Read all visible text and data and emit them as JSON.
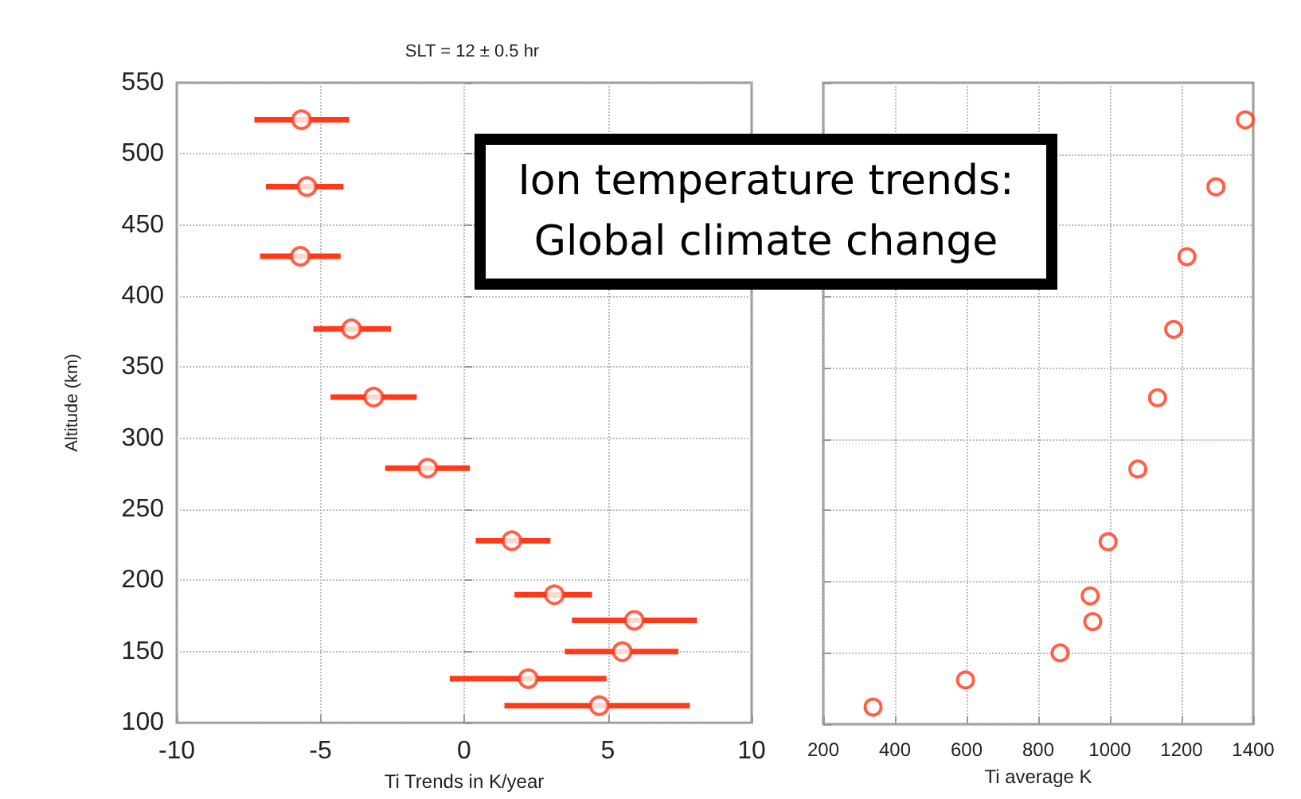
{
  "chart_data": [
    {
      "type": "scatter",
      "title": "SLT = 12 ± 0.5 hr",
      "xlabel": "Ti Trends in K/year",
      "ylabel": "Altitude (km)",
      "x": [
        -5.66,
        -5.47,
        -5.7,
        -3.92,
        -3.15,
        -1.27,
        1.66,
        3.14,
        5.92,
        5.5,
        2.23,
        4.7
      ],
      "values": [
        524,
        477,
        428,
        377,
        329,
        279,
        228,
        190,
        172,
        150,
        131,
        112
      ],
      "xerrors": [
        [
          -7.3,
          -4.0
        ],
        [
          -6.9,
          -4.2
        ],
        [
          -7.1,
          -4.3
        ],
        [
          -5.25,
          -2.55
        ],
        [
          -4.65,
          -1.65
        ],
        [
          -2.75,
          0.2
        ],
        [
          0.4,
          3.0
        ],
        [
          1.75,
          4.45
        ],
        [
          3.75,
          8.1
        ],
        [
          3.5,
          7.45
        ],
        [
          -0.5,
          4.95
        ],
        [
          1.4,
          7.85
        ]
      ],
      "color": "#ff3a1a",
      "marker": "circle",
      "grid": true,
      "xlim": [
        -10,
        10
      ],
      "xticks": [
        -10,
        -5,
        0,
        5,
        10
      ],
      "ylim": [
        100,
        550
      ],
      "yticks": [
        100,
        150,
        200,
        250,
        300,
        350,
        400,
        450,
        500,
        550
      ],
      "annotations": [
        "Ion temperature trends:\nGlobal climate change"
      ]
    },
    {
      "type": "scatter",
      "xlabel": "Ti average K",
      "x": [
        1378,
        1296,
        1215,
        1178,
        1133,
        1078,
        995,
        945,
        952,
        861,
        597,
        339
      ],
      "values": [
        524,
        477,
        428,
        377,
        329,
        279,
        228,
        190,
        172,
        150,
        131,
        112
      ],
      "color": "#ff3a1a",
      "marker": "circle",
      "grid": true,
      "xlim": [
        200,
        1400
      ],
      "xticks": [
        200,
        400,
        600,
        800,
        1000,
        1200,
        1400
      ],
      "ylim": [
        100,
        550
      ],
      "yticks": [
        100,
        150,
        200,
        250,
        300,
        350,
        400,
        450,
        500,
        550
      ],
      "tick_labels": "x"
    }
  ]
}
